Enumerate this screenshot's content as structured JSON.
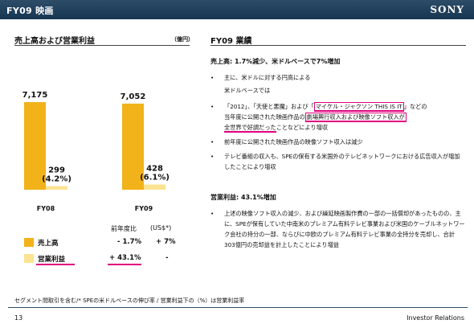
{
  "header": {
    "title": "FY09 映画",
    "logo": "SONY"
  },
  "left": {
    "title": "売上高および営業利益",
    "unit": "（億円）",
    "table_headers": [
      "前年度比",
      "(US$*)"
    ],
    "rows": [
      {
        "label": "売上高",
        "yoy": "- 1.7%",
        "usd": "+ 7%"
      },
      {
        "label": "営業利益",
        "yoy": "+ 43.1%",
        "usd": "-"
      }
    ]
  },
  "chart_data": {
    "type": "bar",
    "categories": [
      "FY08",
      "FY09"
    ],
    "series": [
      {
        "name": "売上高",
        "values": [
          7175,
          7052
        ],
        "labels": [
          "7,175",
          "7,052"
        ],
        "color": "#f2b21a"
      },
      {
        "name": "営業利益",
        "values": [
          299,
          428
        ],
        "labels": [
          "299\n(4.2%)",
          "428\n(6.1%)"
        ],
        "color": "#fbe392"
      }
    ],
    "annotations": [
      "(4.2%)",
      "(6.1%)"
    ]
  },
  "right": {
    "title": "FY09 業績",
    "sales_head": "売上高: 1.7%減少、米ドルベースで7%増加",
    "b1": "主に、米ドルに対する円高による",
    "b1_sub": "米ドルベースでは",
    "b2_a": "「2012」、「天使と悪魔」および「",
    "b2_hl1": "マイケル・ジャクソン THIS IS IT",
    "b2_b": "」などの",
    "b2_line2_a": "当年度に公開された映画作品の",
    "b2_hl2": "劇場興行収入および映像ソフト収入が",
    "b2_hl3": "全世界で好調だった",
    "b2_line3_b": "ことなどにより増収",
    "b3": "前年度に公開された映画作品の映像ソフト収入は減少",
    "b4": "テレビ番組の収入も、SPEの保有する米国外のテレビネットワークにおける広告収入が増加したことにより増収",
    "op_head": "営業利益: 43.1%増加",
    "b5": "上述の映像ソフト収入の減少、および繰延映画製作費の一部の一括償却があったものの、主に、SPEが保有していた中南米のプレミアム有料テレビ事業および米国のケーブルネットワーク会社の持分の一部、ならびに中欧のプレミアム有料テレビ事業の全持分を売却し、合計303億円の売却益を計上したことにより増益",
    "bullet_char": "•"
  },
  "footer": {
    "note": "セグメント間取引を含む/* SPEの米ドルベースの伸び率 / 営業利益下の（%）は営業利益率",
    "page": "13",
    "ir": "Investor Relations"
  }
}
